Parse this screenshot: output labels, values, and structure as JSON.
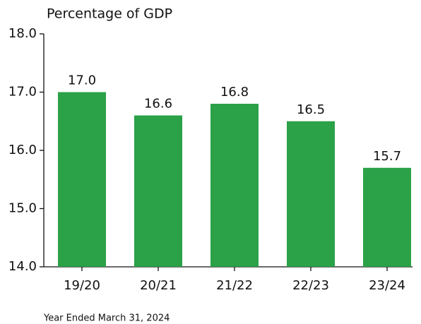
{
  "chart_data": {
    "type": "bar",
    "y_label": "Percentage of GDP",
    "categories": [
      "19/20",
      "20/21",
      "21/22",
      "22/23",
      "23/24"
    ],
    "values": [
      17,
      16.6,
      16.8,
      16.5,
      15.7
    ],
    "value_labels": [
      "17.0",
      "16.6",
      "16.8",
      "16.5",
      "15.7"
    ],
    "color": "#2ba148",
    "ylim": [
      14,
      18
    ],
    "yticks": [
      {
        "value": 14,
        "label": "14.0"
      },
      {
        "value": 15,
        "label": "15.0"
      },
      {
        "value": 16,
        "label": "16.0"
      },
      {
        "value": 17,
        "label": "17.0"
      },
      {
        "value": 18,
        "label": "18.0"
      }
    ],
    "footnote": "Year Ended March 31, 2024"
  }
}
